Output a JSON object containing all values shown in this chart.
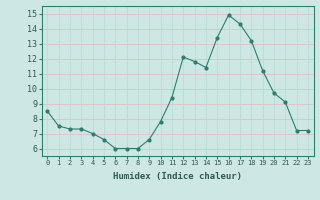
{
  "x": [
    0,
    1,
    2,
    3,
    4,
    5,
    6,
    7,
    8,
    9,
    10,
    11,
    12,
    13,
    14,
    15,
    16,
    17,
    18,
    19,
    20,
    21,
    22,
    23
  ],
  "y": [
    8.5,
    7.5,
    7.3,
    7.3,
    7.0,
    6.6,
    6.0,
    6.0,
    6.0,
    6.6,
    7.8,
    9.4,
    12.1,
    11.8,
    11.4,
    13.4,
    14.9,
    14.3,
    13.2,
    11.2,
    9.7,
    9.1,
    7.2,
    7.2
  ],
  "xlabel": "Humidex (Indice chaleur)",
  "ylim": [
    5.5,
    15.5
  ],
  "xlim": [
    -0.5,
    23.5
  ],
  "yticks": [
    6,
    7,
    8,
    9,
    10,
    11,
    12,
    13,
    14,
    15
  ],
  "xticks": [
    0,
    1,
    2,
    3,
    4,
    5,
    6,
    7,
    8,
    9,
    10,
    11,
    12,
    13,
    14,
    15,
    16,
    17,
    18,
    19,
    20,
    21,
    22,
    23
  ],
  "xtick_labels": [
    "0",
    "1",
    "2",
    "3",
    "4",
    "5",
    "6",
    "7",
    "8",
    "9",
    "10",
    "11",
    "12",
    "13",
    "14",
    "15",
    "16",
    "17",
    "18",
    "19",
    "20",
    "21",
    "22",
    "23"
  ],
  "line_color": "#2e7d6e",
  "marker_color": "#2e7d6e",
  "bg_color": "#cde8e4",
  "grid_color_h": "#e8b8b8",
  "grid_color_v": "#b8d8d4",
  "spine_color": "#2e7d6e",
  "tick_label_color": "#2e5a50",
  "xlabel_color": "#2e5a50"
}
